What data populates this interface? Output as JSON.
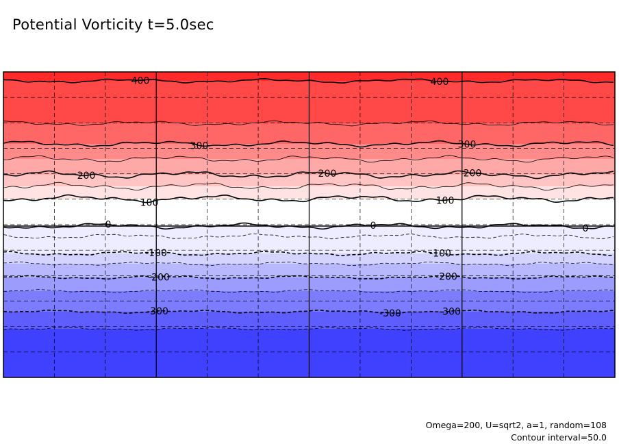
{
  "title": "Potential Vorticity t=5.0sec",
  "footnotes": {
    "params": "Omega=200, U=sqrt2, a=1, random=108",
    "contour_interval": "Contour interval=50.0"
  },
  "chart_data": {
    "type": "heatmap",
    "title": "Potential Vorticity t=5.0sec",
    "variable": "potential vorticity",
    "time": "t=5.0sec",
    "vlim": [
      -450,
      450
    ],
    "contour_interval": 50.0,
    "zero_line_level": 0,
    "bands": [
      {
        "lo": 400,
        "hi": 450,
        "color": "#ff2a2a"
      },
      {
        "lo": 350,
        "hi": 400,
        "color": "#ff4848"
      },
      {
        "lo": 300,
        "hi": 350,
        "color": "#ff6666"
      },
      {
        "lo": 250,
        "hi": 300,
        "color": "#ff8a8a"
      },
      {
        "lo": 200,
        "hi": 250,
        "color": "#ffa8a8"
      },
      {
        "lo": 150,
        "hi": 200,
        "color": "#ffc4c4"
      },
      {
        "lo": 100,
        "hi": 150,
        "color": "#ffe2e2"
      },
      {
        "lo": 0,
        "hi": 100,
        "color": "#ffffff"
      },
      {
        "lo": -100,
        "hi": 0,
        "color": "#ededff"
      },
      {
        "lo": -150,
        "hi": -100,
        "color": "#d4d4ff"
      },
      {
        "lo": -200,
        "hi": -150,
        "color": "#b8b8ff"
      },
      {
        "lo": -250,
        "hi": -200,
        "color": "#9c9cff"
      },
      {
        "lo": -300,
        "hi": -250,
        "color": "#7c7cff"
      },
      {
        "lo": -350,
        "hi": -300,
        "color": "#5e5eff"
      },
      {
        "lo": -450,
        "hi": -350,
        "color": "#4040ff"
      }
    ],
    "contours": [
      {
        "level": 400,
        "style": "solid",
        "bold": true
      },
      {
        "level": 350,
        "style": "solid",
        "bold": false
      },
      {
        "level": 300,
        "style": "solid",
        "bold": true
      },
      {
        "level": 250,
        "style": "solid",
        "bold": false
      },
      {
        "level": 200,
        "style": "solid",
        "bold": true
      },
      {
        "level": 150,
        "style": "solid",
        "bold": false
      },
      {
        "level": 100,
        "style": "solid",
        "bold": true
      },
      {
        "level": 0,
        "style": "solid",
        "bold": true
      },
      {
        "level": -50,
        "style": "dashed",
        "bold": false
      },
      {
        "level": -100,
        "style": "dashed",
        "bold": true
      },
      {
        "level": -150,
        "style": "dashed",
        "bold": false
      },
      {
        "level": -200,
        "style": "dashed",
        "bold": true
      },
      {
        "level": -250,
        "style": "dashed",
        "bold": false
      },
      {
        "level": -300,
        "style": "dashed",
        "bold": true
      },
      {
        "level": -350,
        "style": "dashed",
        "bold": false
      }
    ],
    "contour_labels": [
      {
        "text": "400",
        "level": 400
      },
      {
        "text": "400",
        "level": 400
      },
      {
        "text": "300",
        "level": 300
      },
      {
        "text": "300",
        "level": 300
      },
      {
        "text": "200",
        "level": 200
      },
      {
        "text": "200",
        "level": 200
      },
      {
        "text": "200",
        "level": 200
      },
      {
        "text": "100",
        "level": 100
      },
      {
        "text": "100",
        "level": 100
      },
      {
        "text": "0",
        "level": 0
      },
      {
        "text": "0",
        "level": 0
      },
      {
        "text": "0",
        "level": 0
      },
      {
        "text": "-100",
        "level": -100
      },
      {
        "text": "-100",
        "level": -100
      },
      {
        "text": "-200",
        "level": -200
      },
      {
        "text": "-200",
        "level": -200
      },
      {
        "text": "-300",
        "level": -300
      },
      {
        "text": "-300",
        "level": -300
      },
      {
        "text": "-300",
        "level": -300
      }
    ],
    "grid": {
      "major_vertical": 3,
      "minor_vertical": 12,
      "minor_horizontal": 12,
      "minor_style": "dashed"
    },
    "colors": {
      "line": "#000000",
      "frame": "#000000"
    }
  }
}
